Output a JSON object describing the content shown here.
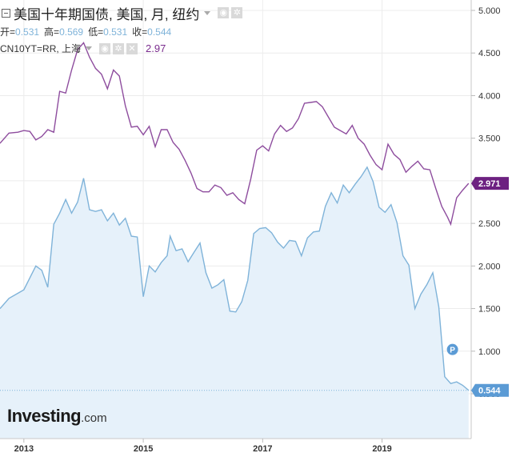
{
  "header": {
    "title": "美国十年期国债, 美国, 月, 纽约",
    "ohlc": [
      {
        "label": "开=",
        "value": "0.531"
      },
      {
        "label": "高=",
        "value": "0.569"
      },
      {
        "label": "低=",
        "value": "0.531"
      },
      {
        "label": "收=",
        "value": "0.544"
      }
    ],
    "compare_symbol": "CN10YT=RR, 上海",
    "compare_value": "2.97"
  },
  "logo": {
    "main": "Investing",
    "suffix": ".com"
  },
  "colors": {
    "us": "#7fb3d9",
    "us_fill": "#e6f1fa",
    "cn": "#8e4d9e",
    "cn_badge": "#6d2181",
    "us_badge": "#5b9bd5"
  },
  "chart_data": {
    "type": "line",
    "y_ticks": [
      "5.000",
      "4.500",
      "4.000",
      "3.500",
      "3.000",
      "2.500",
      "2.000",
      "1.500",
      "1.000",
      "0.500"
    ],
    "ylim": [
      0.5,
      5.0
    ],
    "x_ticks": [
      "2013",
      "2015",
      "2017",
      "2019"
    ],
    "marker_label": "P",
    "series": [
      {
        "name": "美国十年期国债",
        "last_label": "0.544",
        "points": [
          [
            2012.6,
            1.5
          ],
          [
            2012.75,
            1.62
          ],
          [
            2012.9,
            1.68
          ],
          [
            2013.0,
            1.72
          ],
          [
            2013.1,
            1.86
          ],
          [
            2013.2,
            2.0
          ],
          [
            2013.3,
            1.95
          ],
          [
            2013.4,
            1.75
          ],
          [
            2013.5,
            2.49
          ],
          [
            2013.6,
            2.62
          ],
          [
            2013.7,
            2.78
          ],
          [
            2013.8,
            2.62
          ],
          [
            2013.9,
            2.75
          ],
          [
            2014.0,
            3.03
          ],
          [
            2014.1,
            2.66
          ],
          [
            2014.2,
            2.64
          ],
          [
            2014.3,
            2.66
          ],
          [
            2014.4,
            2.53
          ],
          [
            2014.5,
            2.62
          ],
          [
            2014.6,
            2.48
          ],
          [
            2014.7,
            2.56
          ],
          [
            2014.8,
            2.35
          ],
          [
            2014.9,
            2.34
          ],
          [
            2015.0,
            1.64
          ],
          [
            2015.1,
            2.0
          ],
          [
            2015.2,
            1.93
          ],
          [
            2015.3,
            2.04
          ],
          [
            2015.4,
            2.12
          ],
          [
            2015.45,
            2.35
          ],
          [
            2015.55,
            2.18
          ],
          [
            2015.65,
            2.2
          ],
          [
            2015.75,
            2.05
          ],
          [
            2015.85,
            2.16
          ],
          [
            2015.95,
            2.27
          ],
          [
            2016.05,
            1.92
          ],
          [
            2016.15,
            1.74
          ],
          [
            2016.25,
            1.78
          ],
          [
            2016.35,
            1.84
          ],
          [
            2016.45,
            1.47
          ],
          [
            2016.55,
            1.46
          ],
          [
            2016.65,
            1.58
          ],
          [
            2016.75,
            1.83
          ],
          [
            2016.85,
            2.38
          ],
          [
            2016.95,
            2.44
          ],
          [
            2017.05,
            2.45
          ],
          [
            2017.15,
            2.39
          ],
          [
            2017.25,
            2.28
          ],
          [
            2017.35,
            2.21
          ],
          [
            2017.45,
            2.3
          ],
          [
            2017.55,
            2.29
          ],
          [
            2017.65,
            2.12
          ],
          [
            2017.75,
            2.33
          ],
          [
            2017.85,
            2.4
          ],
          [
            2017.95,
            2.41
          ],
          [
            2018.05,
            2.7
          ],
          [
            2018.15,
            2.86
          ],
          [
            2018.25,
            2.74
          ],
          [
            2018.35,
            2.95
          ],
          [
            2018.45,
            2.86
          ],
          [
            2018.55,
            2.96
          ],
          [
            2018.65,
            3.05
          ],
          [
            2018.75,
            3.16
          ],
          [
            2018.85,
            2.99
          ],
          [
            2018.95,
            2.69
          ],
          [
            2019.05,
            2.63
          ],
          [
            2019.15,
            2.72
          ],
          [
            2019.25,
            2.51
          ],
          [
            2019.35,
            2.12
          ],
          [
            2019.45,
            2.01
          ],
          [
            2019.55,
            1.5
          ],
          [
            2019.65,
            1.67
          ],
          [
            2019.75,
            1.78
          ],
          [
            2019.85,
            1.92
          ],
          [
            2019.95,
            1.52
          ],
          [
            2020.05,
            0.7
          ],
          [
            2020.15,
            0.62
          ],
          [
            2020.25,
            0.64
          ],
          [
            2020.35,
            0.6
          ],
          [
            2020.45,
            0.54
          ]
        ]
      },
      {
        "name": "CN10YT=RR",
        "last_label": "2.971",
        "points": [
          [
            2012.6,
            3.44
          ],
          [
            2012.75,
            3.56
          ],
          [
            2012.9,
            3.57
          ],
          [
            2013.0,
            3.59
          ],
          [
            2013.1,
            3.58
          ],
          [
            2013.2,
            3.48
          ],
          [
            2013.3,
            3.52
          ],
          [
            2013.4,
            3.6
          ],
          [
            2013.5,
            3.57
          ],
          [
            2013.6,
            4.05
          ],
          [
            2013.7,
            4.03
          ],
          [
            2013.8,
            4.3
          ],
          [
            2013.9,
            4.54
          ],
          [
            2014.0,
            4.62
          ],
          [
            2014.1,
            4.45
          ],
          [
            2014.2,
            4.32
          ],
          [
            2014.3,
            4.25
          ],
          [
            2014.4,
            4.08
          ],
          [
            2014.5,
            4.3
          ],
          [
            2014.6,
            4.23
          ],
          [
            2014.7,
            3.88
          ],
          [
            2014.8,
            3.63
          ],
          [
            2014.9,
            3.64
          ],
          [
            2015.0,
            3.54
          ],
          [
            2015.1,
            3.64
          ],
          [
            2015.2,
            3.4
          ],
          [
            2015.3,
            3.6
          ],
          [
            2015.4,
            3.6
          ],
          [
            2015.5,
            3.45
          ],
          [
            2015.6,
            3.37
          ],
          [
            2015.7,
            3.24
          ],
          [
            2015.8,
            3.09
          ],
          [
            2015.9,
            2.91
          ],
          [
            2016.0,
            2.87
          ],
          [
            2016.1,
            2.87
          ],
          [
            2016.2,
            2.95
          ],
          [
            2016.3,
            2.92
          ],
          [
            2016.4,
            2.83
          ],
          [
            2016.5,
            2.86
          ],
          [
            2016.6,
            2.78
          ],
          [
            2016.7,
            2.73
          ],
          [
            2016.8,
            3.02
          ],
          [
            2016.9,
            3.36
          ],
          [
            2017.0,
            3.41
          ],
          [
            2017.1,
            3.35
          ],
          [
            2017.2,
            3.55
          ],
          [
            2017.3,
            3.65
          ],
          [
            2017.4,
            3.58
          ],
          [
            2017.5,
            3.62
          ],
          [
            2017.6,
            3.73
          ],
          [
            2017.7,
            3.91
          ],
          [
            2017.8,
            3.92
          ],
          [
            2017.9,
            3.93
          ],
          [
            2018.0,
            3.87
          ],
          [
            2018.1,
            3.75
          ],
          [
            2018.2,
            3.63
          ],
          [
            2018.3,
            3.59
          ],
          [
            2018.4,
            3.55
          ],
          [
            2018.5,
            3.65
          ],
          [
            2018.6,
            3.5
          ],
          [
            2018.7,
            3.43
          ],
          [
            2018.8,
            3.3
          ],
          [
            2018.9,
            3.19
          ],
          [
            2019.0,
            3.13
          ],
          [
            2019.1,
            3.43
          ],
          [
            2019.2,
            3.31
          ],
          [
            2019.3,
            3.25
          ],
          [
            2019.4,
            3.1
          ],
          [
            2019.5,
            3.17
          ],
          [
            2019.6,
            3.23
          ],
          [
            2019.7,
            3.14
          ],
          [
            2019.8,
            3.13
          ],
          [
            2019.9,
            2.91
          ],
          [
            2020.0,
            2.7
          ],
          [
            2020.1,
            2.57
          ],
          [
            2020.15,
            2.49
          ],
          [
            2020.25,
            2.8
          ],
          [
            2020.35,
            2.89
          ],
          [
            2020.45,
            2.97
          ]
        ]
      }
    ]
  }
}
